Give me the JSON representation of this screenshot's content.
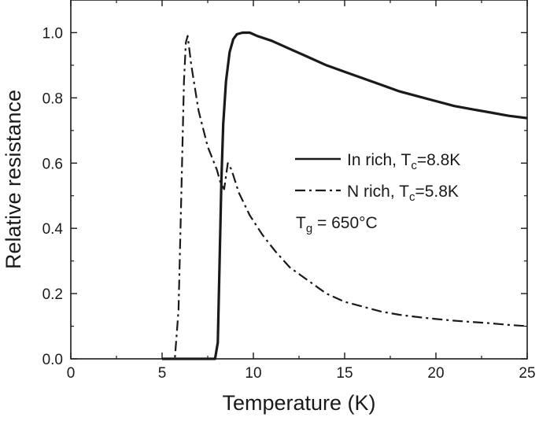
{
  "chart_data": {
    "type": "line",
    "xlabel": "Temperature (K)",
    "ylabel": "Relative resistance",
    "xlim": [
      0,
      25
    ],
    "ylim": [
      0,
      1.1
    ],
    "x_ticks": [
      "0",
      "5",
      "10",
      "15",
      "20",
      "25"
    ],
    "y_ticks": [
      "0.0",
      "0.2",
      "0.4",
      "0.6",
      "0.8",
      "1.0"
    ],
    "grid": false,
    "legend_position": "middle-right",
    "series": [
      {
        "name_main": "In rich, T",
        "name_sub": "c",
        "name_tail": "=8.8K",
        "style": "solid",
        "color": "#1a1a1a",
        "x": [
          5.0,
          7.6,
          7.9,
          8.05,
          8.15,
          8.25,
          8.35,
          8.5,
          8.7,
          8.9,
          9.1,
          9.4,
          9.8,
          10.2,
          11.0,
          12.0,
          13.0,
          14.0,
          15.0,
          16.0,
          17.0,
          18.0,
          19.0,
          20.0,
          21.0,
          22.0,
          23.0,
          24.0,
          25.0
        ],
        "y": [
          0.0,
          0.0,
          0.0,
          0.05,
          0.3,
          0.55,
          0.72,
          0.85,
          0.94,
          0.98,
          0.995,
          1.0,
          1.0,
          0.99,
          0.975,
          0.95,
          0.925,
          0.9,
          0.88,
          0.86,
          0.84,
          0.82,
          0.805,
          0.79,
          0.775,
          0.765,
          0.755,
          0.745,
          0.738
        ]
      },
      {
        "name_main": "N rich, T",
        "name_sub": "c",
        "name_tail": "=5.8K",
        "style": "dashdot",
        "color": "#1a1a1a",
        "x": [
          5.0,
          5.7,
          5.9,
          6.05,
          6.2,
          6.3,
          6.4,
          6.6,
          7.0,
          7.5,
          8.0,
          8.2,
          8.4,
          8.6,
          8.8,
          9.2,
          9.8,
          10.5,
          11.2,
          12.0,
          13.0,
          14.0,
          15.0,
          16.0,
          17.0,
          18.0,
          19.0,
          20.0,
          21.0,
          22.0,
          23.0,
          24.0,
          25.0
        ],
        "y": [
          0.0,
          0.0,
          0.15,
          0.5,
          0.85,
          0.97,
          0.99,
          0.9,
          0.76,
          0.65,
          0.58,
          0.54,
          0.52,
          0.6,
          0.58,
          0.51,
          0.44,
          0.38,
          0.33,
          0.28,
          0.24,
          0.2,
          0.175,
          0.16,
          0.145,
          0.135,
          0.128,
          0.122,
          0.117,
          0.113,
          0.109,
          0.104,
          0.1
        ]
      }
    ],
    "annotation": {
      "main": "T",
      "sub": "g",
      "tail": " = 650°C"
    }
  }
}
